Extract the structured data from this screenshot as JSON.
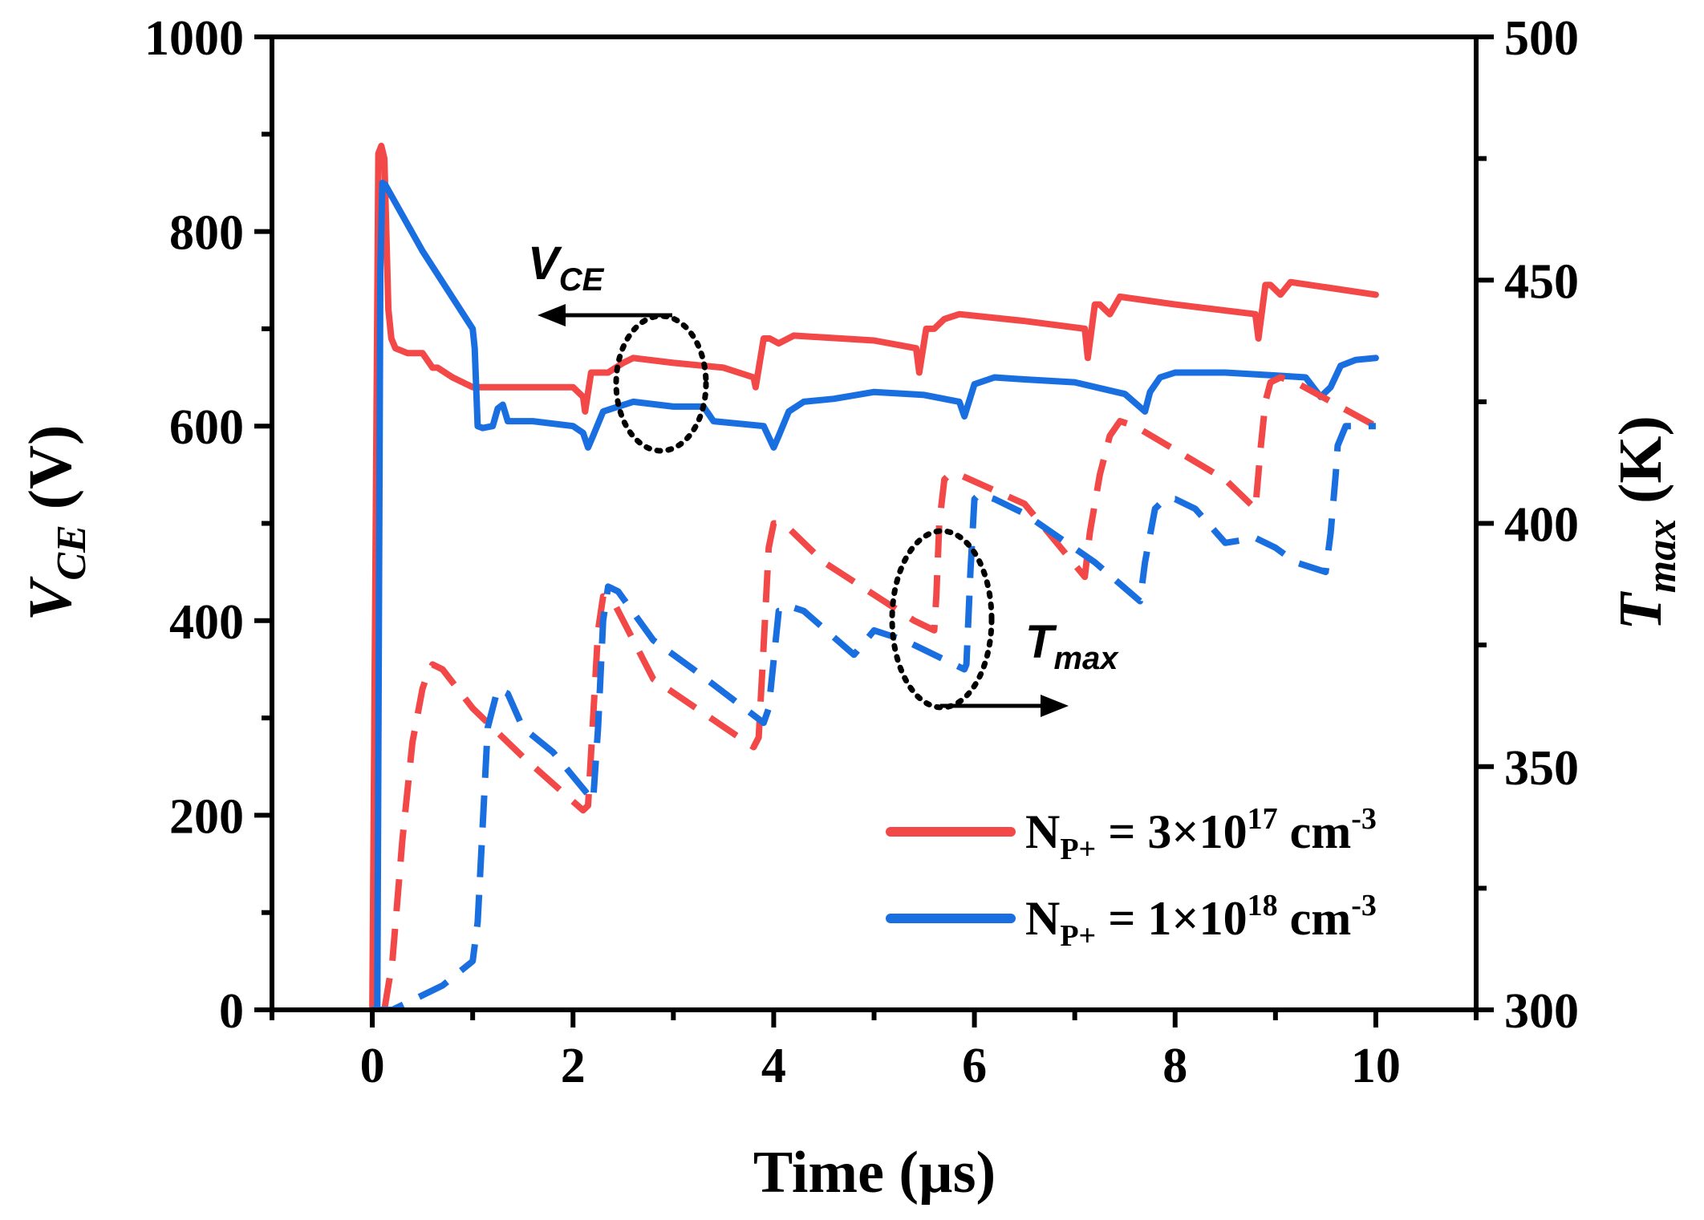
{
  "chart_data": {
    "type": "line",
    "xlabel": "Time (µs)",
    "ylabel_left": {
      "main": "V",
      "sub": "CE",
      "unit": " (V)"
    },
    "ylabel_right": {
      "main": "T",
      "sub": "max",
      "unit": " (K)"
    },
    "xlim": [
      -1,
      11
    ],
    "ylim_left": [
      0,
      1000
    ],
    "ylim_right": [
      300,
      500
    ],
    "x_ticks": [
      0,
      2,
      4,
      6,
      8,
      10
    ],
    "y_left_ticks": [
      0,
      200,
      400,
      600,
      800,
      1000
    ],
    "y_right_ticks": [
      300,
      350,
      400,
      450,
      500
    ],
    "annotations": {
      "vce": {
        "main": "V",
        "sub": "CE"
      },
      "tmax": {
        "main": "T",
        "sub": "max"
      }
    },
    "legend": [
      {
        "name": "N_P+ = 3×10^17 cm^-3",
        "base": "N",
        "sub": "P+",
        "eq": " = 3×10",
        "exp": "17",
        "unit": " cm",
        "unitexp": "-3",
        "color": "#f24848"
      },
      {
        "name": "N_P+ = 1×10^18 cm^-3",
        "base": "N",
        "sub": "P+",
        "eq": " = 1×10",
        "exp": "18",
        "unit": " cm",
        "unitexp": "-3",
        "color": "#1a6fe0"
      }
    ],
    "series": [
      {
        "name": "VCE, NP+ = 3e17",
        "axis": "left",
        "style": "solid",
        "color": "#f24848",
        "x": [
          0.0,
          0.06,
          0.09,
          0.12,
          0.16,
          0.19,
          0.23,
          0.35,
          0.5,
          0.6,
          0.65,
          0.8,
          1.0,
          1.3,
          1.6,
          2.0,
          2.1,
          2.12,
          2.18,
          2.35,
          2.5,
          2.6,
          3.0,
          3.5,
          3.8,
          3.82,
          3.9,
          3.96,
          4.05,
          4.2,
          5.0,
          5.42,
          5.45,
          5.52,
          5.6,
          5.7,
          5.85,
          6.5,
          7.1,
          7.13,
          7.2,
          7.25,
          7.35,
          7.45,
          8.0,
          8.8,
          8.83,
          8.9,
          8.95,
          9.05,
          9.15,
          10.0
        ],
        "values": [
          0,
          880,
          888,
          875,
          720,
          690,
          680,
          675,
          675,
          660,
          660,
          650,
          640,
          640,
          640,
          640,
          630,
          615,
          655,
          655,
          665,
          670,
          665,
          660,
          650,
          640,
          690,
          690,
          685,
          693,
          688,
          680,
          655,
          700,
          700,
          710,
          715,
          708,
          700,
          670,
          725,
          725,
          715,
          733,
          725,
          715,
          690,
          745,
          745,
          735,
          748,
          735
        ]
      },
      {
        "name": "VCE, NP+ = 1e18",
        "axis": "left",
        "style": "solid",
        "color": "#1a6fe0",
        "x": [
          0.0,
          0.05,
          0.08,
          0.1,
          0.13,
          0.5,
          1.0,
          1.02,
          1.05,
          1.1,
          1.2,
          1.25,
          1.3,
          1.35,
          1.6,
          2.0,
          2.1,
          2.15,
          2.2,
          2.3,
          2.6,
          3.0,
          3.3,
          3.4,
          3.9,
          4.0,
          4.05,
          4.15,
          4.3,
          4.6,
          5.0,
          5.5,
          5.85,
          5.9,
          6.0,
          6.2,
          6.5,
          7.0,
          7.5,
          7.7,
          7.75,
          7.85,
          8.0,
          8.5,
          9.0,
          9.3,
          9.45,
          9.55,
          9.65,
          9.8,
          10.0
        ],
        "values": [
          0,
          0,
          760,
          850,
          848,
          780,
          700,
          680,
          600,
          598,
          600,
          618,
          622,
          605,
          605,
          600,
          593,
          578,
          590,
          615,
          625,
          620,
          620,
          605,
          600,
          578,
          590,
          615,
          625,
          628,
          635,
          632,
          625,
          610,
          643,
          650,
          648,
          645,
          633,
          615,
          635,
          650,
          655,
          655,
          652,
          650,
          630,
          640,
          662,
          668,
          670
        ]
      },
      {
        "name": "Tmax, NP+ = 3e17",
        "axis": "right",
        "style": "dashed",
        "color": "#f24848",
        "x": [
          0.12,
          0.2,
          0.3,
          0.4,
          0.5,
          0.55,
          0.6,
          0.7,
          1.0,
          1.5,
          2.1,
          2.15,
          2.2,
          2.25,
          2.3,
          2.4,
          2.8,
          3.8,
          3.85,
          3.9,
          3.95,
          4.0,
          4.1,
          4.5,
          5.4,
          5.6,
          5.62,
          5.65,
          5.7,
          5.75,
          5.85,
          6.5,
          7.1,
          7.15,
          7.25,
          7.35,
          7.45,
          7.6,
          8.5,
          8.8,
          8.85,
          8.9,
          8.95,
          9.05,
          9.2,
          10.0
        ],
        "values": [
          300,
          310,
          335,
          355,
          366,
          369,
          371,
          370,
          362,
          352,
          341,
          342,
          360,
          378,
          385,
          384,
          368,
          354,
          356,
          375,
          395,
          400,
          400,
          392,
          380,
          378,
          385,
          400,
          409,
          410,
          410,
          404,
          389,
          398,
          410,
          418,
          421,
          420,
          409,
          403,
          415,
          425,
          429,
          430,
          429,
          420
        ]
      },
      {
        "name": "Tmax, NP+ = 1e18",
        "axis": "right",
        "style": "dashed",
        "color": "#1a6fe0",
        "x": [
          0.0,
          0.2,
          0.4,
          0.7,
          1.0,
          1.05,
          1.1,
          1.15,
          1.25,
          1.35,
          1.5,
          1.8,
          2.2,
          2.25,
          2.3,
          2.35,
          2.45,
          2.8,
          3.2,
          3.9,
          3.95,
          4.05,
          4.1,
          4.15,
          4.3,
          4.8,
          5.0,
          5.3,
          5.9,
          5.92,
          5.96,
          6.0,
          6.05,
          6.2,
          6.5,
          7.2,
          7.65,
          7.7,
          7.8,
          7.9,
          8.0,
          8.2,
          8.5,
          8.8,
          9.0,
          9.2,
          9.5,
          9.55,
          9.6,
          9.62,
          9.7,
          9.8,
          10.0
        ],
        "values": [
          300,
          300,
          302,
          305,
          310,
          318,
          338,
          358,
          366,
          365,
          358,
          353,
          343,
          358,
          380,
          387,
          386,
          376,
          370,
          359,
          362,
          382,
          382,
          383,
          382,
          373,
          378,
          376,
          370,
          371,
          390,
          405,
          406,
          405,
          402,
          392,
          384,
          392,
          403,
          405,
          405,
          403,
          396,
          397,
          395,
          392,
          390,
          398,
          410,
          416,
          420,
          420,
          420
        ]
      }
    ]
  }
}
